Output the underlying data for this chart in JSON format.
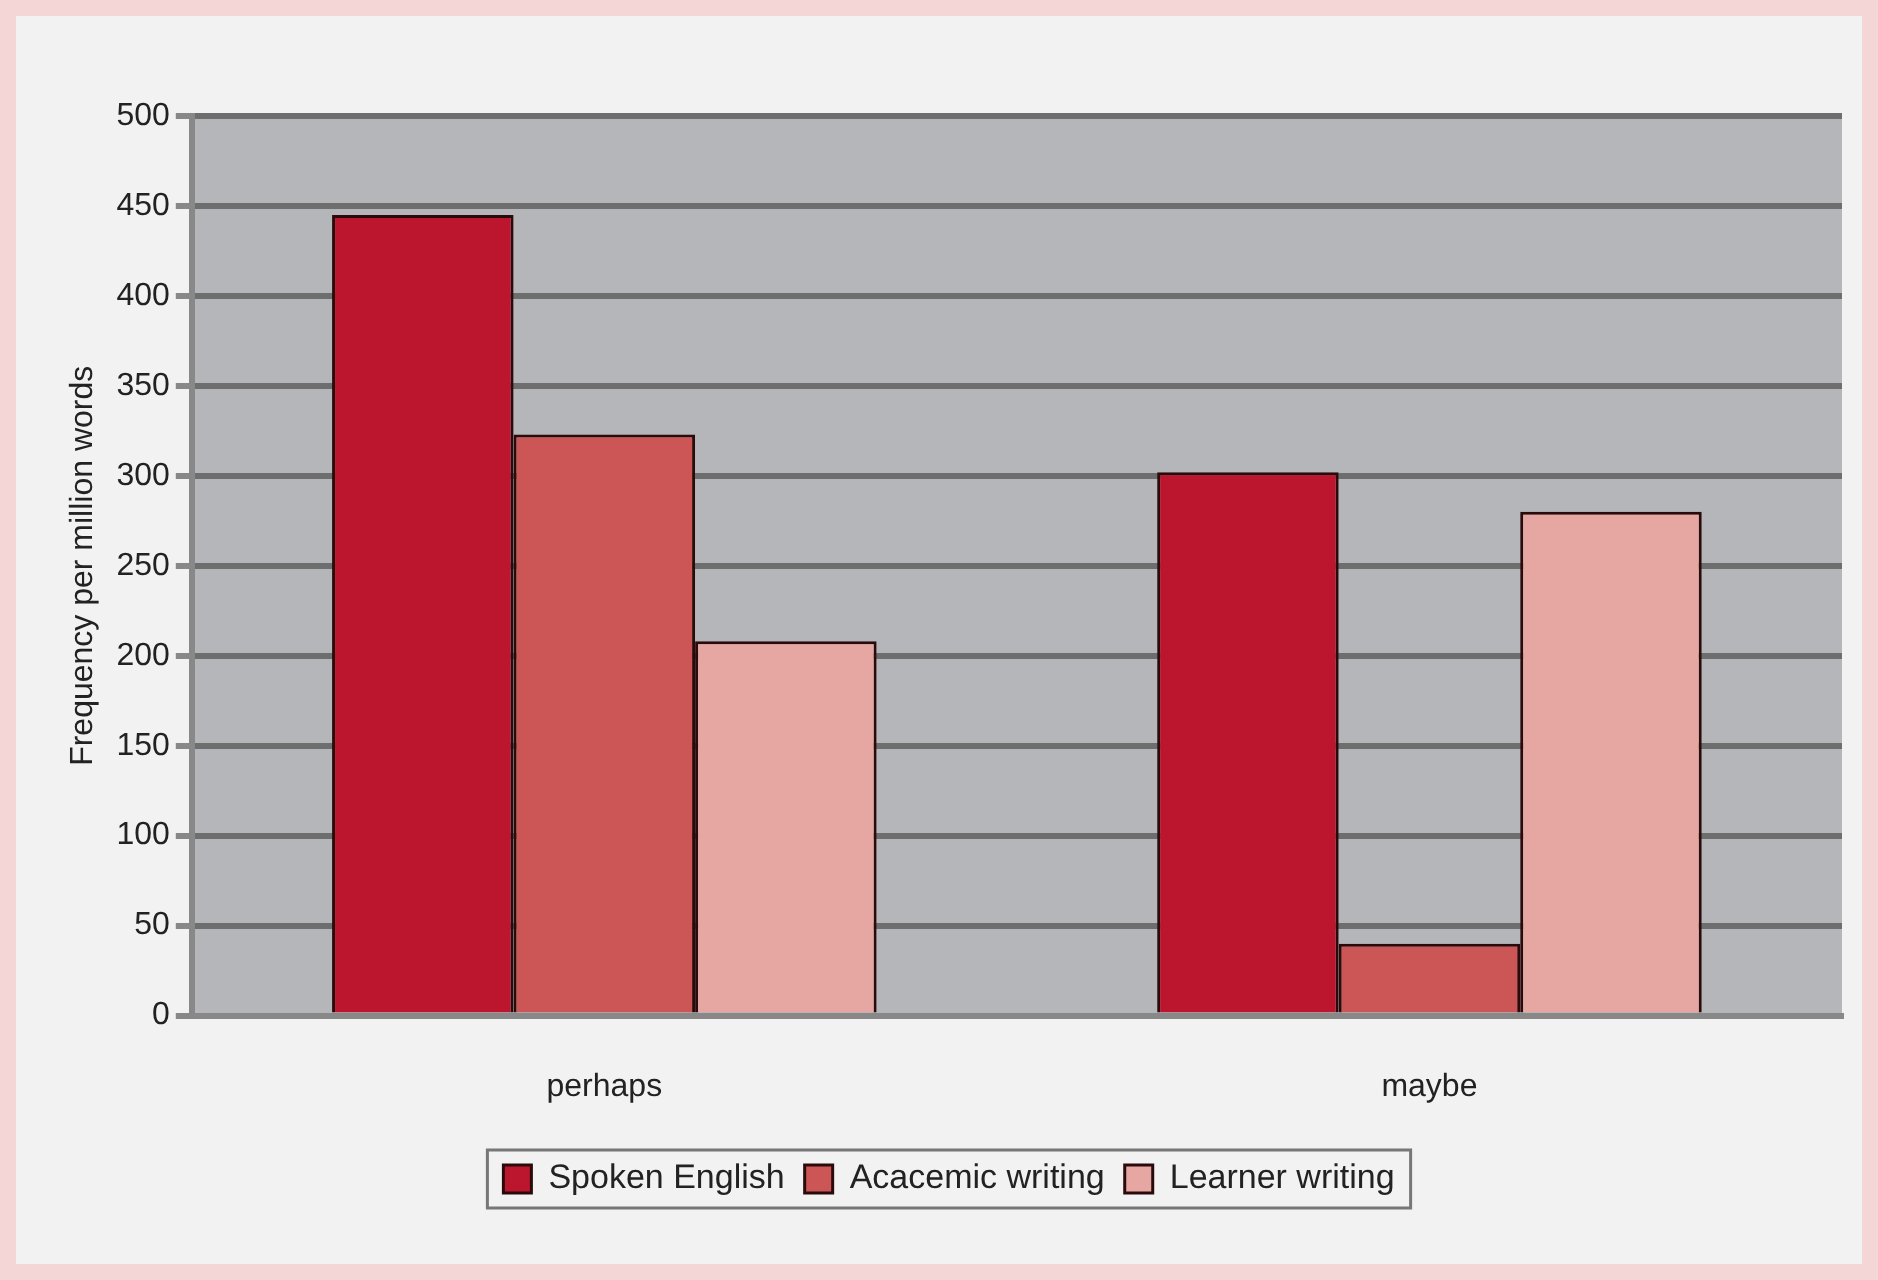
{
  "chart_data": {
    "type": "bar",
    "ylabel": "Frequency per million words",
    "categories": [
      "perhaps",
      "maybe"
    ],
    "series": [
      {
        "name": "Spoken English",
        "color": "#bb162e",
        "values": [
          445,
          302
        ]
      },
      {
        "name": "Acacemic writing",
        "color": "#cc5555",
        "values": [
          323,
          40
        ]
      },
      {
        "name": "Learner writing",
        "color": "#e6a7a3",
        "values": [
          208,
          280
        ]
      }
    ],
    "ylim": [
      0,
      500
    ],
    "yticks": [
      0,
      50,
      100,
      150,
      200,
      250,
      300,
      350,
      400,
      450,
      500
    ],
    "grid": "y",
    "legend": "bottom"
  }
}
